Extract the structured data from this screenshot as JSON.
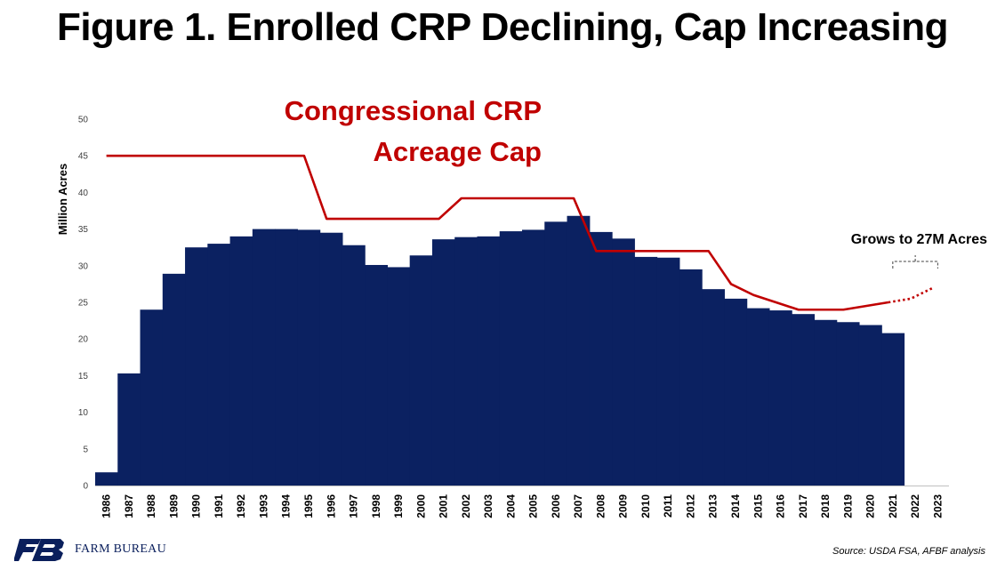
{
  "title": "Figure 1. Enrolled CRP Declining, Cap Increasing",
  "colors": {
    "bars": "#0b2161",
    "cap_line": "#c00000",
    "axis": "#bfbfbf"
  },
  "chart_data": {
    "type": "bar",
    "title": "Figure 1. Enrolled CRP Declining, Cap Increasing",
    "xlabel": "",
    "ylabel": "Million Acres",
    "ylim": [
      0,
      50
    ],
    "yticks": [
      0,
      5,
      10,
      15,
      20,
      25,
      30,
      35,
      40,
      45,
      50
    ],
    "grid": false,
    "categories": [
      "1986",
      "1987",
      "1988",
      "1989",
      "1990",
      "1991",
      "1992",
      "1993",
      "1994",
      "1995",
      "1996",
      "1997",
      "1998",
      "1999",
      "2000",
      "2001",
      "2002",
      "2003",
      "2004",
      "2005",
      "2006",
      "2007",
      "2008",
      "2009",
      "2010",
      "2011",
      "2012",
      "2013",
      "2014",
      "2015",
      "2016",
      "2017",
      "2018",
      "2019",
      "2020",
      "2021",
      "2022",
      "2023"
    ],
    "series": [
      {
        "kind": "bar",
        "values": [
          1.8,
          15.3,
          24.0,
          28.9,
          32.5,
          33.0,
          34.0,
          35.0,
          35.0,
          34.9,
          34.5,
          32.8,
          30.1,
          29.8,
          31.4,
          33.6,
          33.9,
          34.0,
          34.7,
          34.9,
          36.0,
          36.8,
          34.6,
          33.7,
          31.2,
          31.1,
          29.5,
          26.8,
          25.5,
          24.2,
          23.9,
          23.4,
          22.6,
          22.3,
          21.9,
          20.8,
          null,
          null
        ]
      },
      {
        "kind": "line",
        "name": "Congressional CRP Acreage Cap",
        "values": [
          45,
          45,
          45,
          45,
          45,
          45,
          45,
          45,
          45,
          45,
          36.4,
          36.4,
          36.4,
          36.4,
          36.4,
          36.4,
          39.2,
          39.2,
          39.2,
          39.2,
          39.2,
          39.2,
          32.0,
          32.0,
          32.0,
          32.0,
          32.0,
          32.0,
          27.5,
          26.0,
          25.0,
          24.0,
          24.0,
          24.0,
          24.5,
          25.0,
          25.5,
          27.0
        ],
        "projected_from": "2021"
      }
    ],
    "annotations": [
      {
        "text": "Grows to 27M Acres",
        "target": [
          "2021",
          "2023"
        ]
      }
    ]
  },
  "source": "Source:  USDA FSA, AFBF analysis",
  "logo": {
    "text": "FARM BUREAU",
    "mark": "FB"
  }
}
